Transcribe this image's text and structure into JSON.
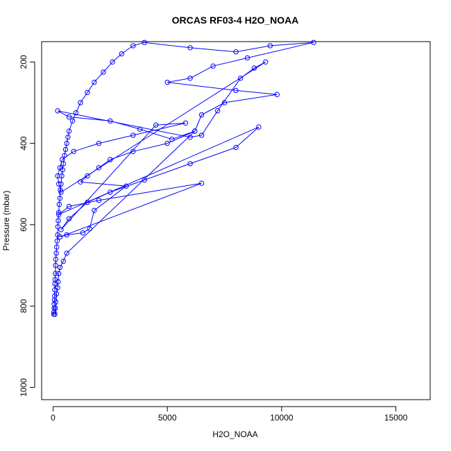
{
  "chart_data": {
    "type": "line",
    "title": "ORCAS RF03-4 H2O_NOAA",
    "xlabel": "H2O_NOAA",
    "ylabel": "Pressure (mbar)",
    "xlim": [
      -500,
      16500
    ],
    "ylim": [
      1030,
      150
    ],
    "y_reversed": true,
    "x_ticks": [
      0,
      5000,
      10000,
      15000
    ],
    "x_tick_labels": [
      "0",
      "5000",
      "10000",
      "15000"
    ],
    "y_ticks": [
      200,
      400,
      600,
      800,
      1000
    ],
    "y_tick_labels": [
      "200",
      "400",
      "600",
      "800",
      "1000"
    ],
    "grid": false,
    "legend": "none",
    "series": [
      {
        "color": "#0000ff",
        "marker": "open-circle",
        "points": [
          [
            30,
            820
          ],
          [
            40,
            815
          ],
          [
            45,
            805
          ],
          [
            50,
            795
          ],
          [
            60,
            785
          ],
          [
            70,
            775
          ],
          [
            75,
            760
          ],
          [
            80,
            745
          ],
          [
            90,
            735
          ],
          [
            100,
            720
          ],
          [
            110,
            700
          ],
          [
            120,
            685
          ],
          [
            140,
            670
          ],
          [
            160,
            655
          ],
          [
            180,
            640
          ],
          [
            200,
            625
          ],
          [
            210,
            605
          ],
          [
            230,
            590
          ],
          [
            250,
            570
          ],
          [
            270,
            550
          ],
          [
            300,
            535
          ],
          [
            320,
            515
          ],
          [
            350,
            500
          ],
          [
            380,
            480
          ],
          [
            420,
            465
          ],
          [
            450,
            450
          ],
          [
            500,
            430
          ],
          [
            550,
            415
          ],
          [
            600,
            400
          ],
          [
            650,
            385
          ],
          [
            700,
            370
          ],
          [
            850,
            345
          ],
          [
            1000,
            325
          ],
          [
            1200,
            300
          ],
          [
            1500,
            275
          ],
          [
            1800,
            250
          ],
          [
            2200,
            225
          ],
          [
            2600,
            200
          ],
          [
            3000,
            180
          ],
          [
            3500,
            160
          ],
          [
            4000,
            152
          ],
          [
            6000,
            165
          ],
          [
            8000,
            175
          ],
          [
            9500,
            160
          ],
          [
            11400,
            152
          ],
          [
            8500,
            190
          ],
          [
            7000,
            210
          ],
          [
            6000,
            240
          ],
          [
            5000,
            250
          ],
          [
            8000,
            270
          ],
          [
            9800,
            280
          ],
          [
            7500,
            300
          ],
          [
            6500,
            330
          ],
          [
            6200,
            370
          ],
          [
            5000,
            400
          ],
          [
            3500,
            420
          ],
          [
            2500,
            440
          ],
          [
            2000,
            460
          ],
          [
            1500,
            480
          ],
          [
            1200,
            495
          ],
          [
            3200,
            505
          ],
          [
            1800,
            565
          ],
          [
            1600,
            610
          ],
          [
            1300,
            620
          ],
          [
            600,
            625
          ],
          [
            300,
            630
          ],
          [
            6500,
            498
          ],
          [
            2000,
            540
          ],
          [
            700,
            555
          ],
          [
            250,
            575
          ],
          [
            9000,
            360
          ],
          [
            8000,
            410
          ],
          [
            6000,
            450
          ],
          [
            4000,
            490
          ],
          [
            2500,
            520
          ],
          [
            1500,
            545
          ],
          [
            700,
            585
          ],
          [
            350,
            612
          ],
          [
            4500,
            355
          ],
          [
            5800,
            350
          ],
          [
            3500,
            380
          ],
          [
            2000,
            400
          ],
          [
            900,
            420
          ],
          [
            400,
            440
          ],
          [
            300,
            460
          ],
          [
            200,
            480
          ],
          [
            250,
            500
          ],
          [
            350,
            520
          ],
          [
            9300,
            200
          ],
          [
            8800,
            215
          ],
          [
            8200,
            240
          ],
          [
            7200,
            320
          ],
          [
            6500,
            380
          ],
          [
            6000,
            385
          ],
          [
            200,
            320
          ],
          [
            700,
            335
          ],
          [
            2500,
            345
          ],
          [
            3800,
            365
          ],
          [
            5200,
            390
          ],
          [
            6200,
            370
          ],
          [
            600,
            670
          ],
          [
            450,
            690
          ],
          [
            300,
            705
          ],
          [
            250,
            720
          ],
          [
            220,
            740
          ],
          [
            200,
            755
          ],
          [
            150,
            770
          ],
          [
            120,
            790
          ],
          [
            100,
            805
          ],
          [
            80,
            820
          ]
        ]
      }
    ]
  }
}
